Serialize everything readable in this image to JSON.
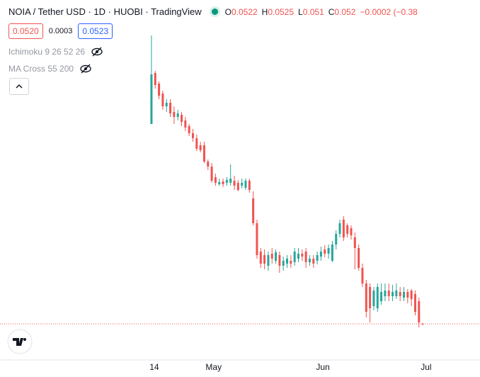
{
  "chart_data": {
    "type": "candlestick",
    "title": "NOIA / Tether USD · 1D · HUOBI · TradingView",
    "ohlc_letters": [
      "O",
      "H",
      "L",
      "C"
    ],
    "change_label": "−0.0002 (−0.38",
    "bid": "0.0520",
    "spread": "0.0003",
    "ask": "0.0523",
    "indicators": [
      "Ichimoku 9 26 52 26",
      "MA Cross 55 200"
    ],
    "up_color": "#26a69a",
    "down_color": "#ef5350",
    "categories": [
      null,
      null,
      null,
      null,
      null,
      null,
      null,
      null,
      null,
      null,
      null,
      null,
      null,
      null,
      null,
      null,
      null,
      null,
      null,
      null,
      null,
      null,
      null,
      null,
      null,
      null,
      null,
      null,
      null,
      null,
      null,
      null,
      null,
      null,
      null,
      null,
      null,
      null,
      null,
      null,
      null,
      null,
      null,
      null,
      null,
      null,
      null,
      null,
      null,
      null,
      null,
      null,
      null,
      null,
      null,
      null,
      null,
      null,
      null,
      null,
      null,
      null,
      null,
      null,
      null,
      null,
      null,
      null,
      null,
      null,
      null,
      null,
      null
    ],
    "open": [
      0.193,
      0.229,
      0.2215,
      0.2145,
      0.2055,
      0.208,
      0.2015,
      0.198,
      0.1995,
      0.1955,
      0.1915,
      0.1865,
      0.183,
      0.178,
      0.178,
      0.1665,
      0.163,
      0.1555,
      0.1505,
      0.1525,
      0.1515,
      0.1515,
      0.153,
      0.1515,
      0.1495,
      0.148,
      0.153,
      0.1405,
      0.123,
      0.103,
      0.1005,
      0.093,
      0.1015,
      0.0965,
      0.1005,
      0.093,
      0.0945,
      0.0965,
      0.0955,
      0.098,
      0.1015,
      0.103,
      0.0955,
      0.098,
      0.0965,
      0.0995,
      0.1045,
      0.1015,
      0.0965,
      0.108,
      0.1155,
      0.1255,
      0.1215,
      0.1195,
      0.113,
      0.1055,
      0.0915,
      0.0805,
      0.078,
      0.0645,
      0.063,
      0.068,
      0.0715,
      0.0755,
      0.0715,
      0.0715,
      0.0745,
      0.0705,
      0.0745,
      0.0755,
      0.073,
      0.068,
      0.0522
    ],
    "high": [
      0.2555,
      0.2305,
      0.223,
      0.2165,
      0.2105,
      0.2105,
      0.2055,
      0.203,
      0.2015,
      0.198,
      0.193,
      0.1895,
      0.1855,
      0.1805,
      0.1805,
      0.168,
      0.1655,
      0.158,
      0.1545,
      0.1545,
      0.1555,
      0.1645,
      0.1565,
      0.1535,
      0.1545,
      0.1545,
      0.1545,
      0.1455,
      0.1255,
      0.1055,
      0.1045,
      0.103,
      0.1055,
      0.1045,
      0.103,
      0.0995,
      0.1005,
      0.1005,
      0.1055,
      0.1055,
      0.1045,
      0.1055,
      0.1005,
      0.1005,
      0.103,
      0.1065,
      0.1075,
      0.108,
      0.1105,
      0.118,
      0.1255,
      0.128,
      0.123,
      0.1215,
      0.1165,
      0.108,
      0.0945,
      0.083,
      0.0805,
      0.078,
      0.0805,
      0.0805,
      0.0805,
      0.0805,
      0.0795,
      0.0805,
      0.078,
      0.078,
      0.0765,
      0.0765,
      0.0755,
      0.0705,
      0.0525
    ],
    "low": [
      0.193,
      0.218,
      0.2105,
      0.203,
      0.2015,
      0.198,
      0.193,
      0.1955,
      0.1915,
      0.188,
      0.1845,
      0.1805,
      0.174,
      0.173,
      0.1655,
      0.1605,
      0.1515,
      0.1495,
      0.1495,
      0.1485,
      0.1495,
      0.1495,
      0.1465,
      0.1455,
      0.1475,
      0.1465,
      0.1445,
      0.1215,
      0.098,
      0.0915,
      0.0905,
      0.0895,
      0.0945,
      0.0945,
      0.088,
      0.0895,
      0.0915,
      0.0915,
      0.093,
      0.0955,
      0.0965,
      0.0915,
      0.093,
      0.0915,
      0.094,
      0.0965,
      0.099,
      0.098,
      0.0955,
      0.1045,
      0.113,
      0.1105,
      0.113,
      0.1115,
      0.0905,
      0.0895,
      0.078,
      0.0565,
      0.053,
      0.0615,
      0.0605,
      0.0655,
      0.068,
      0.068,
      0.068,
      0.0695,
      0.068,
      0.068,
      0.0665,
      0.0645,
      0.058,
      0.0495,
      0.051
    ],
    "close": [
      0.228,
      0.2205,
      0.213,
      0.2055,
      0.208,
      0.2005,
      0.198,
      0.2005,
      0.1945,
      0.1905,
      0.1865,
      0.183,
      0.1755,
      0.1745,
      0.1665,
      0.163,
      0.153,
      0.1515,
      0.152,
      0.1505,
      0.1535,
      0.1545,
      0.1495,
      0.1465,
      0.1515,
      0.153,
      0.1465,
      0.123,
      0.1005,
      0.0945,
      0.0945,
      0.1005,
      0.098,
      0.1025,
      0.093,
      0.0965,
      0.098,
      0.0945,
      0.103,
      0.1015,
      0.0995,
      0.0955,
      0.098,
      0.0945,
      0.1005,
      0.103,
      0.1015,
      0.1055,
      0.108,
      0.1155,
      0.123,
      0.113,
      0.1155,
      0.1145,
      0.1055,
      0.0915,
      0.0805,
      0.0605,
      0.063,
      0.0755,
      0.078,
      0.0745,
      0.0755,
      0.0715,
      0.0745,
      0.0755,
      0.0715,
      0.0745,
      0.0705,
      0.0695,
      0.0605,
      0.053,
      0.052
    ],
    "ylim": [
      0.0265,
      0.2805
    ],
    "xlim": [
      -40.2,
      87.2
    ],
    "xticks": [
      {
        "value": 0.75,
        "label": "14"
      },
      {
        "value": 16.5,
        "label": "May"
      },
      {
        "value": 45.5,
        "label": "Jun"
      },
      {
        "value": 72.9,
        "label": "Jul"
      }
    ]
  }
}
